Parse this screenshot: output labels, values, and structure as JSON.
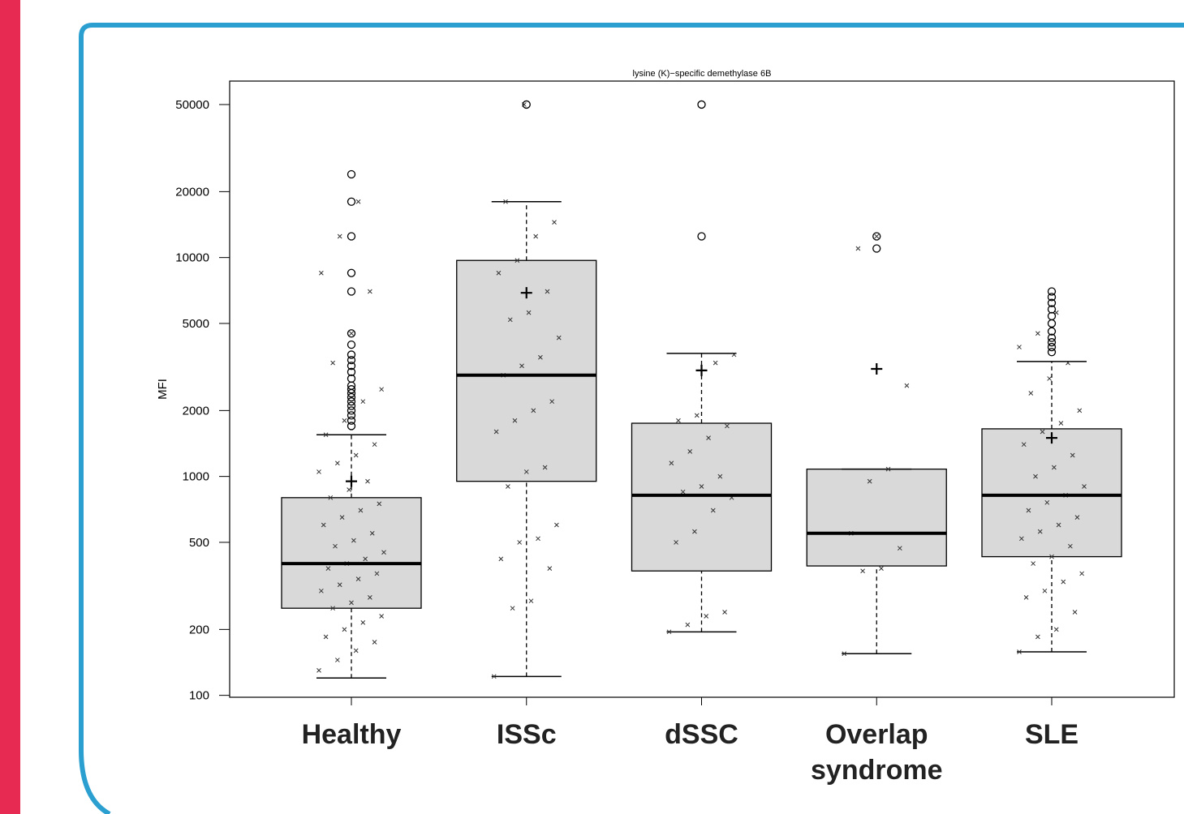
{
  "chart_data": {
    "type": "box",
    "title": "lysine (K)−specific demethylase 6B",
    "y_label": "MFI",
    "log_scale": true,
    "ylim": [
      98,
      64000
    ],
    "yticks": [
      100,
      200,
      500,
      1000,
      2000,
      5000,
      10000,
      20000,
      50000
    ],
    "color": "#d9d9d9",
    "categories": [
      "Healthy",
      "ISSc",
      "dSSC",
      "Overlap syndrome",
      "SLE"
    ],
    "boxes": [
      {
        "whisker_low": 120,
        "q1": 250,
        "median": 400,
        "q3": 800,
        "whisker_high": 1550,
        "mean": 950,
        "outliers": [
          1700,
          1800,
          1900,
          2000,
          2100,
          2200,
          2300,
          2400,
          2500,
          2600,
          2800,
          3000,
          3200,
          3400,
          3600,
          4000,
          4500,
          7000,
          8500,
          12500,
          18000,
          24000
        ],
        "points": [
          130,
          145,
          160,
          175,
          185,
          200,
          215,
          230,
          250,
          265,
          280,
          300,
          320,
          340,
          360,
          380,
          400,
          420,
          450,
          480,
          510,
          550,
          600,
          650,
          700,
          750,
          800,
          870,
          950,
          1050,
          1150,
          1250,
          1400,
          1550,
          1800,
          2200,
          2500,
          3300,
          4500,
          7000,
          8500,
          12500,
          18000
        ]
      },
      {
        "whisker_low": 122,
        "q1": 950,
        "median": 2900,
        "q3": 9700,
        "whisker_high": 18000,
        "mean": 6900,
        "outliers": [
          50000
        ],
        "points": [
          122,
          250,
          270,
          380,
          420,
          500,
          520,
          600,
          900,
          1050,
          1100,
          1600,
          1800,
          2000,
          2200,
          2900,
          3200,
          3500,
          4300,
          5200,
          5600,
          7000,
          8500,
          9700,
          12500,
          14500,
          18000,
          50000
        ]
      },
      {
        "whisker_low": 195,
        "q1": 370,
        "median": 820,
        "q3": 1750,
        "whisker_high": 3650,
        "mean": 3050,
        "outliers": [
          12500,
          50000
        ],
        "points": [
          195,
          210,
          230,
          240,
          500,
          560,
          700,
          800,
          850,
          900,
          1000,
          1150,
          1300,
          1500,
          1700,
          1800,
          1900,
          3300,
          3600
        ]
      },
      {
        "whisker_low": 155,
        "q1": 390,
        "median": 550,
        "q3": 1080,
        "whisker_high": 1080,
        "mean": 3100,
        "outliers": [
          11000,
          12500
        ],
        "points": [
          155,
          370,
          380,
          470,
          550,
          950,
          1080,
          2600,
          11000,
          12500
        ]
      },
      {
        "whisker_low": 158,
        "q1": 430,
        "median": 820,
        "q3": 1650,
        "whisker_high": 3350,
        "mean": 1500,
        "outliers": [
          3700,
          3900,
          4100,
          4300,
          4600,
          5000,
          5400,
          5800,
          6200,
          6600,
          7000
        ],
        "points": [
          158,
          185,
          200,
          240,
          280,
          300,
          330,
          360,
          400,
          430,
          480,
          520,
          560,
          600,
          650,
          700,
          760,
          820,
          900,
          1000,
          1100,
          1250,
          1400,
          1600,
          1750,
          2000,
          2400,
          2800,
          3300,
          3900,
          4500,
          5600
        ]
      }
    ]
  }
}
